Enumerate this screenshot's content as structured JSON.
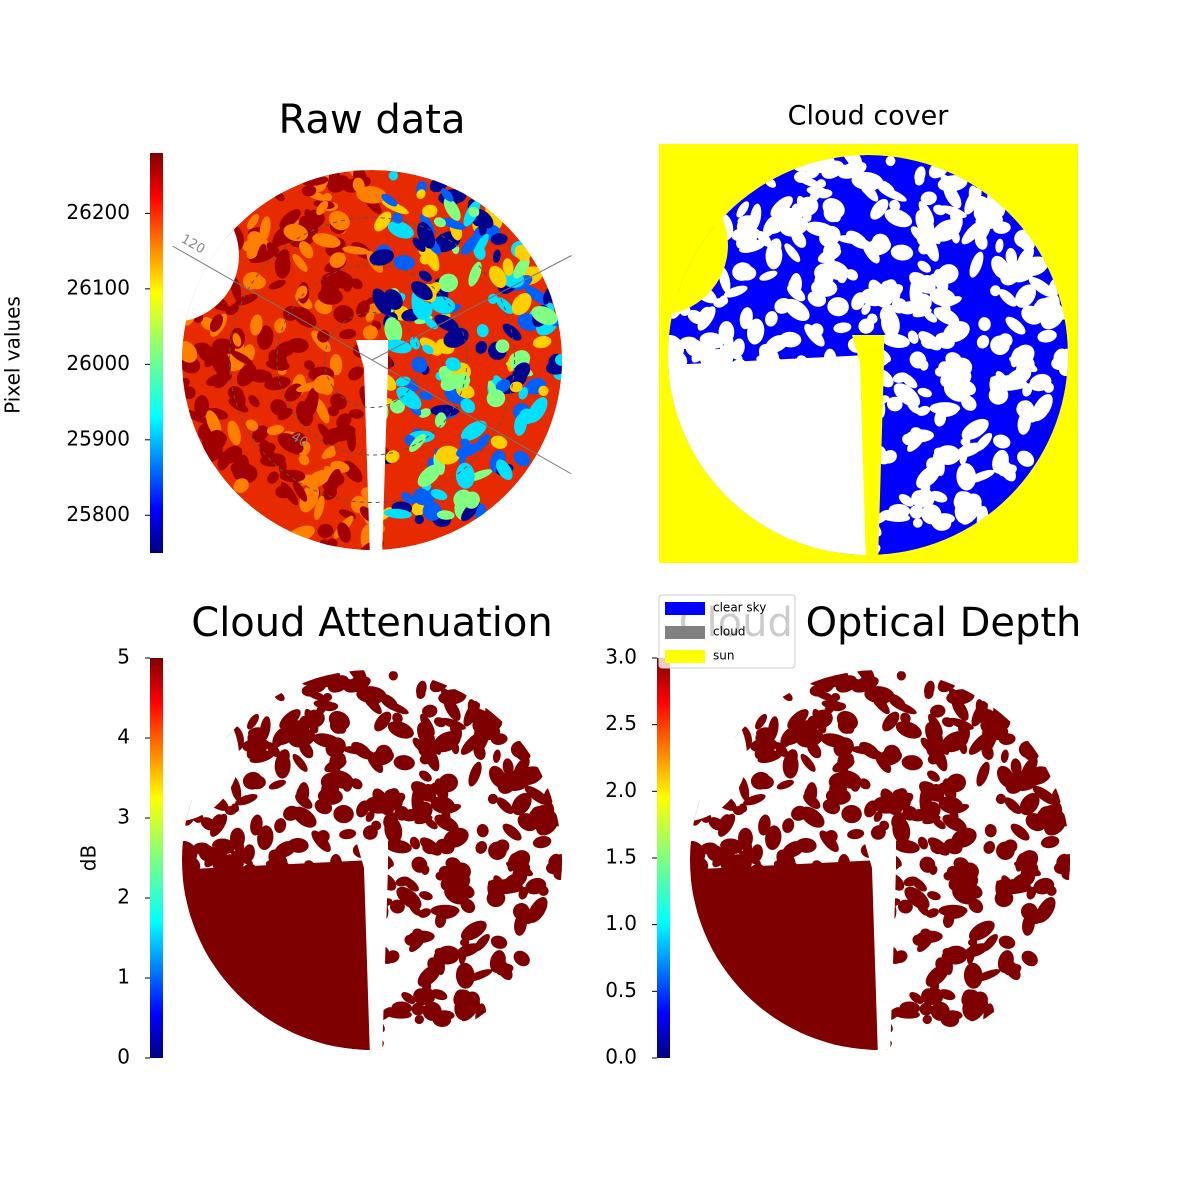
{
  "chart_data": [
    {
      "type": "raw-image",
      "title": "Raw data",
      "colorbar_label": "Pixel values",
      "clim": [
        25750,
        26280
      ],
      "cticks": [
        25800,
        25900,
        26000,
        26100,
        26200
      ],
      "annotations": [
        "120",
        "40"
      ]
    },
    {
      "type": "class-image",
      "title": "Cloud cover",
      "categories": [
        "clear sky",
        "cloud",
        "sun"
      ],
      "colors": [
        "#0000ff",
        "#808080",
        "#ffff00"
      ]
    },
    {
      "type": "value-image",
      "title": "Cloud Attenuation",
      "colorbar_label": "dB",
      "clim": [
        0,
        5
      ],
      "cticks": [
        0,
        1,
        2,
        3,
        4,
        5
      ]
    },
    {
      "type": "value-image",
      "title": "Cloud Optical Depth",
      "clim": [
        0,
        3
      ],
      "cticks": [
        {
          "value": 0,
          "label": "0.0"
        },
        0.5,
        {
          "value": 1,
          "label": "1.0"
        },
        1.5,
        {
          "value": 2,
          "label": "2.0"
        },
        2.5,
        {
          "value": 3,
          "label": "3.0"
        }
      ]
    }
  ]
}
